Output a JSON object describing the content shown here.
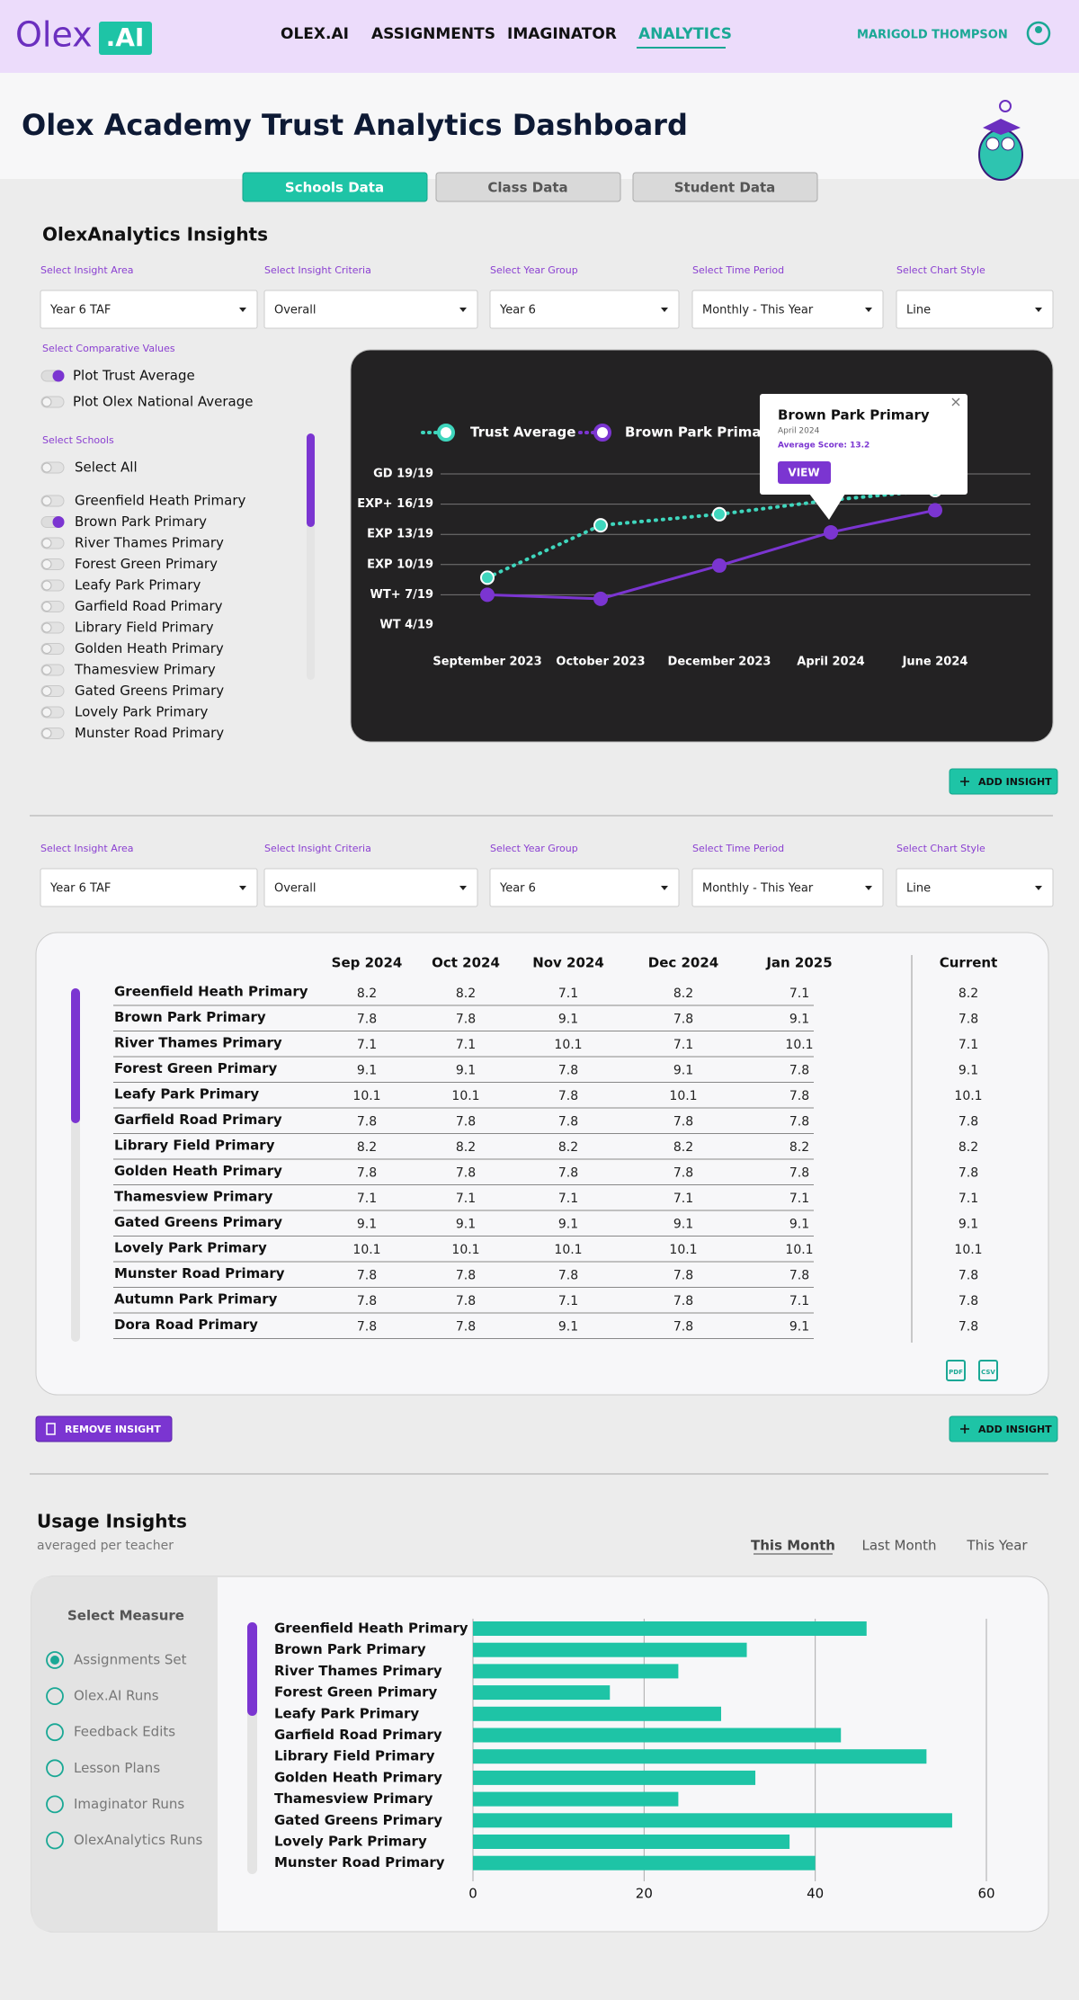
{
  "nav": {
    "logo_text": "Olex",
    "logo_badge": ".AI",
    "links": [
      "OLEX.AI",
      "ASSIGNMENTS",
      "IMAGINATOR",
      "ANALYTICS"
    ],
    "user": "MARIGOLD THOMPSON"
  },
  "header": {
    "title": "Olex Academy Trust Analytics Dashboard"
  },
  "tabs": [
    "Schools Data",
    "Class Data",
    "Student Data"
  ],
  "insight1": {
    "title": "OlexAnalytics Insights",
    "filters": [
      {
        "label": "Select Insight Area",
        "value": "Year 6 TAF"
      },
      {
        "label": "Select Insight Criteria",
        "value": "Overall"
      },
      {
        "label": "Select Year Group",
        "value": "Year 6"
      },
      {
        "label": "Select Time Period",
        "value": "Monthly - This Year"
      },
      {
        "label": "Select Chart Style",
        "value": "Line"
      }
    ],
    "comparative": {
      "label": "Select Comparative Values",
      "options": [
        "Plot Trust Average",
        "Plot Olex National Average"
      ]
    },
    "schools": {
      "label": "Select Schools",
      "select_all": "Select All",
      "items": [
        "Greenfield Heath Primary",
        "Brown Park Primary",
        "River Thames Primary",
        "Forest Green Primary",
        "Leafy Park Primary",
        "Garfield Road Primary",
        "Library Field Primary",
        "Golden Heath Primary",
        "Thamesview Primary",
        "Gated Greens Primary",
        "Lovely Park Primary",
        "Munster Road Primary"
      ]
    },
    "chart": {
      "type": "line",
      "categories": [
        "September 2023",
        "October 2023",
        "December 2023",
        "April 2024",
        "June 2024"
      ],
      "series": [
        {
          "name": "Trust Average",
          "color": "#3fd6bd",
          "values": [
            8.7,
            13.9,
            15,
            16.4,
            17.4
          ]
        },
        {
          "name": "Brown Park Primary",
          "color": "#7b35d1",
          "values": [
            7,
            6.6,
            9.9,
            13.2,
            15.4
          ]
        }
      ],
      "ylim": [
        4,
        19
      ],
      "yticks": [
        {
          "value": 4,
          "label": "WT 4/19"
        },
        {
          "value": 7,
          "label": "WT+ 7/19"
        },
        {
          "value": 10,
          "label": "EXP 10/19"
        },
        {
          "value": 13,
          "label": "EXP 13/19"
        },
        {
          "value": 16,
          "label": "EXP+ 16/19"
        },
        {
          "value": 19,
          "label": "GD 19/19"
        }
      ],
      "grid": true,
      "tooltip": {
        "title": "Brown Park Primary",
        "date": "April 2024",
        "score": "Average Score: 13.2",
        "button": "VIEW"
      }
    },
    "add_button": "ADD INSIGHT"
  },
  "insight2": {
    "filters": [
      {
        "label": "Select Insight Area",
        "value": "Year 6 TAF"
      },
      {
        "label": "Select Insight Criteria",
        "value": "Overall"
      },
      {
        "label": "Select Year Group",
        "value": "Year 6"
      },
      {
        "label": "Select Time Period",
        "value": "Monthly - This Year"
      },
      {
        "label": "Select Chart Style",
        "value": "Line"
      }
    ],
    "table": {
      "columns": [
        "Sep 2024",
        "Oct 2024",
        "Nov 2024",
        "Dec 2024",
        "Jan 2025",
        "Current"
      ],
      "rows": [
        [
          "Greenfield Heath Primary",
          8.2,
          8.2,
          7.1,
          8.2,
          7.1,
          8.2
        ],
        [
          "Brown Park Primary",
          7.8,
          7.8,
          9.1,
          7.8,
          9.1,
          7.8
        ],
        [
          "River Thames Primary",
          7.1,
          7.1,
          10.1,
          7.1,
          10.1,
          7.1
        ],
        [
          "Forest Green Primary",
          9.1,
          9.1,
          7.8,
          9.1,
          7.8,
          9.1
        ],
        [
          "Leafy Park Primary",
          10.1,
          10.1,
          7.8,
          10.1,
          7.8,
          10.1
        ],
        [
          "Garfield Road Primary",
          7.8,
          7.8,
          7.8,
          7.8,
          7.8,
          7.8
        ],
        [
          "Library Field Primary",
          8.2,
          8.2,
          8.2,
          8.2,
          8.2,
          8.2
        ],
        [
          "Golden Heath Primary",
          7.8,
          7.8,
          7.8,
          7.8,
          7.8,
          7.8
        ],
        [
          "Thamesview Primary",
          7.1,
          7.1,
          7.1,
          7.1,
          7.1,
          7.1
        ],
        [
          "Gated Greens Primary",
          9.1,
          9.1,
          9.1,
          9.1,
          9.1,
          9.1
        ],
        [
          "Lovely Park Primary",
          10.1,
          10.1,
          10.1,
          10.1,
          10.1,
          10.1
        ],
        [
          "Munster Road Primary",
          7.8,
          7.8,
          7.8,
          7.8,
          7.8,
          7.8
        ],
        [
          "Autumn Park Primary",
          7.8,
          7.8,
          7.1,
          7.8,
          7.1,
          7.8
        ],
        [
          "Dora Road Primary",
          7.8,
          7.8,
          9.1,
          7.8,
          9.1,
          7.8
        ]
      ]
    },
    "export": [
      "PDF",
      "CSV"
    ],
    "remove_button": "REMOVE INSIGHT",
    "add_button": "ADD INSIGHT"
  },
  "usage": {
    "title": "Usage Insights",
    "subtitle": "averaged per teacher",
    "periods": [
      "This Month",
      "Last Month",
      "This Year"
    ],
    "measure_label": "Select Measure",
    "measures": [
      "Assignments Set",
      "Olex.AI Runs",
      "Feedback Edits",
      "Lesson Plans",
      "Imaginator Runs",
      "OlexAnalytics Runs"
    ],
    "chart": {
      "type": "bar",
      "categories": [
        "Greenfield Heath Primary",
        "Brown Park Primary",
        "River Thames Primary",
        "Forest Green Primary",
        "Leafy Park Primary",
        "Garfield Road Primary",
        "Library Field Primary",
        "Golden Heath Primary",
        "Thamesview Primary",
        "Gated Greens Primary",
        "Lovely Park Primary",
        "Munster Road Primary"
      ],
      "values": [
        46,
        32,
        24,
        16,
        29,
        43,
        53,
        33,
        24,
        56,
        37,
        40
      ],
      "color": "#1ec4a6",
      "xlim": [
        0,
        60
      ],
      "xticks": [
        0,
        20,
        40,
        60
      ],
      "grid": true
    }
  }
}
